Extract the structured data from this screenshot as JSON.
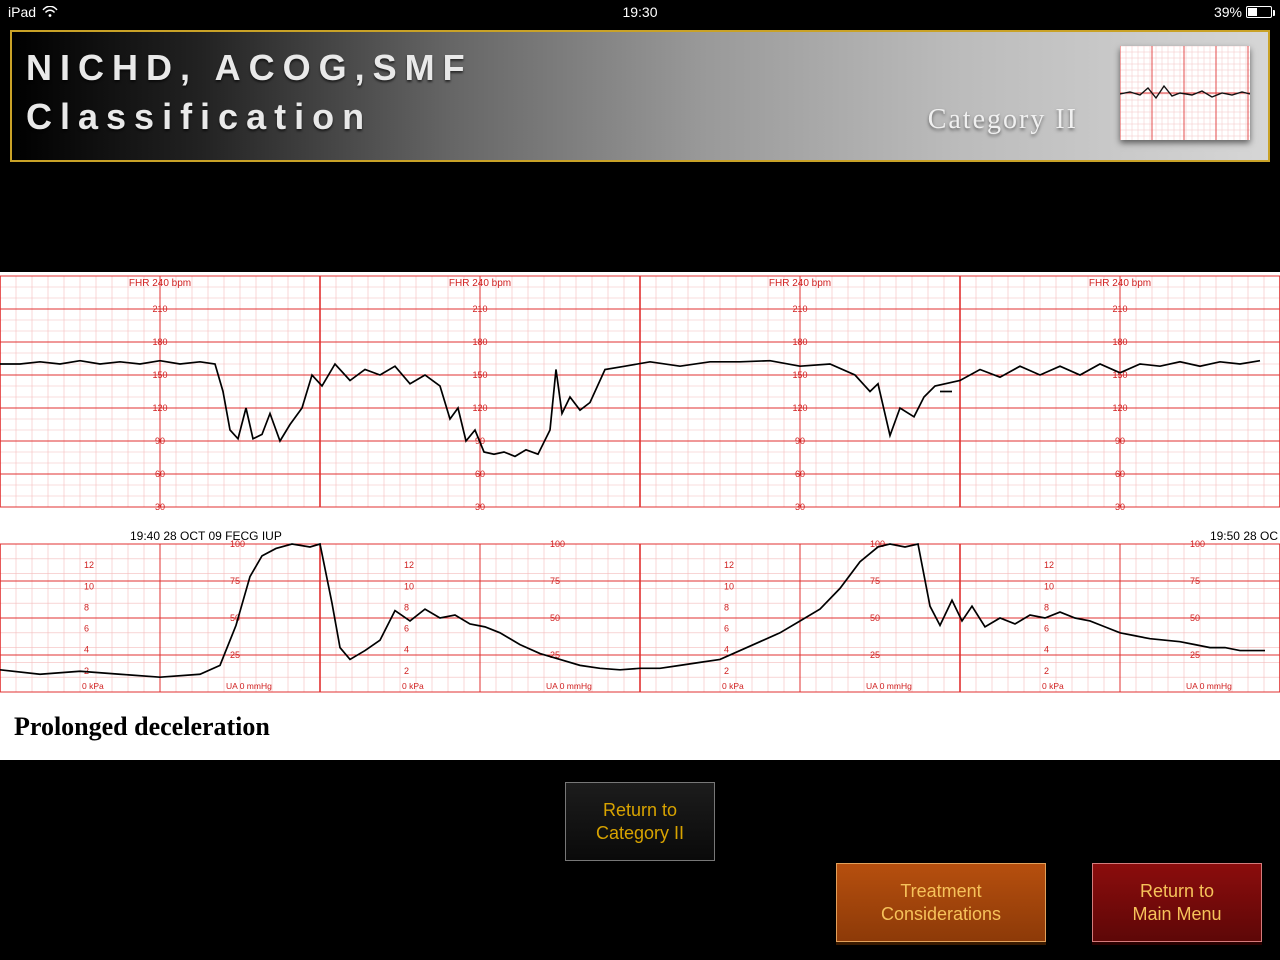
{
  "statusbar": {
    "device": "iPad",
    "time": "19:30",
    "battery_pct_label": "39%",
    "battery_pct": 39
  },
  "banner": {
    "title_line1": "NICHD, ACOG,SMF",
    "title_line2": "Classification",
    "subtitle": "Category II",
    "border_color": "#c9a227",
    "thumb": {
      "grid_color_minor": "#f4c4c4",
      "grid_color_major": "#e03a3a",
      "trace_color": "#111111",
      "bg": "#ffffff"
    }
  },
  "fhr_strip": {
    "type": "line",
    "bg": "#ffffff",
    "grid_minor_color": "#f3bcbc",
    "grid_major_color": "#e13030",
    "text_color": "#d02020",
    "trace_color": "#000000",
    "panel_heading": "FHR 240 bpm",
    "y_labels": [
      30,
      60,
      90,
      120,
      150,
      180,
      210
    ],
    "ylim": [
      30,
      240
    ],
    "caption": "Prolonged deceleration",
    "caption_fontsize": 26,
    "num_panels": 4,
    "fhr_points": [
      [
        0,
        160
      ],
      [
        20,
        160
      ],
      [
        40,
        162
      ],
      [
        60,
        160
      ],
      [
        80,
        163
      ],
      [
        100,
        160
      ],
      [
        120,
        162
      ],
      [
        140,
        160
      ],
      [
        160,
        163
      ],
      [
        180,
        160
      ],
      [
        200,
        162
      ],
      [
        215,
        160
      ],
      [
        223,
        135
      ],
      [
        230,
        100
      ],
      [
        238,
        92
      ],
      [
        246,
        120
      ],
      [
        253,
        92
      ],
      [
        262,
        96
      ],
      [
        270,
        115
      ],
      [
        280,
        90
      ],
      [
        290,
        105
      ],
      [
        302,
        120
      ],
      [
        312,
        150
      ],
      [
        322,
        140
      ],
      [
        335,
        160
      ],
      [
        350,
        145
      ],
      [
        365,
        155
      ],
      [
        380,
        150
      ],
      [
        395,
        158
      ],
      [
        410,
        142
      ],
      [
        425,
        150
      ],
      [
        440,
        140
      ],
      [
        450,
        110
      ],
      [
        458,
        120
      ],
      [
        466,
        90
      ],
      [
        475,
        100
      ],
      [
        484,
        80
      ],
      [
        494,
        78
      ],
      [
        504,
        80
      ],
      [
        515,
        76
      ],
      [
        526,
        82
      ],
      [
        538,
        78
      ],
      [
        550,
        100
      ],
      [
        556,
        155
      ],
      [
        562,
        115
      ],
      [
        570,
        130
      ],
      [
        580,
        118
      ],
      [
        590,
        125
      ],
      [
        605,
        155
      ],
      [
        625,
        158
      ],
      [
        650,
        162
      ],
      [
        680,
        158
      ],
      [
        710,
        162
      ],
      [
        740,
        162
      ],
      [
        770,
        163
      ],
      [
        800,
        158
      ],
      [
        830,
        160
      ],
      [
        855,
        150
      ],
      [
        870,
        135
      ],
      [
        878,
        142
      ],
      [
        890,
        95
      ],
      [
        900,
        120
      ],
      [
        914,
        112
      ],
      [
        924,
        130
      ],
      [
        935,
        140
      ],
      [
        960,
        145
      ],
      [
        980,
        155
      ],
      [
        1000,
        148
      ],
      [
        1020,
        158
      ],
      [
        1040,
        150
      ],
      [
        1060,
        158
      ],
      [
        1080,
        150
      ],
      [
        1100,
        160
      ],
      [
        1120,
        152
      ],
      [
        1140,
        160
      ],
      [
        1160,
        158
      ],
      [
        1180,
        162
      ],
      [
        1200,
        158
      ],
      [
        1220,
        162
      ],
      [
        1240,
        160
      ],
      [
        1260,
        163
      ]
    ],
    "fhr_gaps": [
      [
        878,
        890
      ],
      [
        935,
        960
      ]
    ]
  },
  "toco_strip": {
    "type": "line",
    "bg": "#ffffff",
    "grid_minor_color": "#f3bcbc",
    "grid_major_color": "#e13030",
    "text_color": "#d02020",
    "trace_color": "#000000",
    "timestamp_left": "19:40 28 OCT 09 FECG IUP",
    "timestamp_right": "19:50 28 OC",
    "left_scale_labels": [
      2,
      4,
      6,
      8,
      10,
      12
    ],
    "right_scale_labels": [
      25,
      50,
      75,
      100
    ],
    "ylim_mmHg": [
      0,
      100
    ],
    "footer_left": "0 kPa",
    "footer_right": "UA  0 mmHg",
    "toco_points": [
      [
        0,
        15
      ],
      [
        40,
        12
      ],
      [
        80,
        14
      ],
      [
        120,
        12
      ],
      [
        160,
        10
      ],
      [
        200,
        12
      ],
      [
        220,
        18
      ],
      [
        236,
        45
      ],
      [
        250,
        78
      ],
      [
        262,
        92
      ],
      [
        276,
        97
      ],
      [
        292,
        100
      ],
      [
        310,
        98
      ],
      [
        320,
        100
      ],
      [
        332,
        60
      ],
      [
        340,
        30
      ],
      [
        350,
        22
      ],
      [
        365,
        28
      ],
      [
        380,
        35
      ],
      [
        395,
        55
      ],
      [
        410,
        48
      ],
      [
        425,
        56
      ],
      [
        440,
        50
      ],
      [
        455,
        52
      ],
      [
        470,
        46
      ],
      [
        485,
        44
      ],
      [
        500,
        40
      ],
      [
        520,
        32
      ],
      [
        540,
        26
      ],
      [
        560,
        22
      ],
      [
        580,
        18
      ],
      [
        600,
        16
      ],
      [
        620,
        15
      ],
      [
        640,
        16
      ],
      [
        660,
        16
      ],
      [
        680,
        18
      ],
      [
        700,
        20
      ],
      [
        720,
        22
      ],
      [
        740,
        28
      ],
      [
        760,
        34
      ],
      [
        780,
        40
      ],
      [
        800,
        48
      ],
      [
        820,
        56
      ],
      [
        840,
        70
      ],
      [
        860,
        88
      ],
      [
        878,
        98
      ],
      [
        890,
        100
      ],
      [
        905,
        98
      ],
      [
        918,
        100
      ],
      [
        930,
        58
      ],
      [
        940,
        45
      ],
      [
        952,
        62
      ],
      [
        962,
        48
      ],
      [
        972,
        58
      ],
      [
        985,
        44
      ],
      [
        1000,
        50
      ],
      [
        1015,
        46
      ],
      [
        1030,
        52
      ],
      [
        1045,
        50
      ],
      [
        1060,
        54
      ],
      [
        1075,
        50
      ],
      [
        1090,
        48
      ],
      [
        1105,
        44
      ],
      [
        1120,
        40
      ],
      [
        1135,
        38
      ],
      [
        1150,
        36
      ],
      [
        1165,
        35
      ],
      [
        1180,
        34
      ],
      [
        1195,
        32
      ],
      [
        1210,
        30
      ],
      [
        1225,
        30
      ],
      [
        1240,
        28
      ],
      [
        1255,
        28
      ],
      [
        1265,
        28
      ]
    ]
  },
  "buttons": {
    "return_category": "Return to\nCategory II",
    "treatment": "Treatment\nConsiderations",
    "main_menu": "Return to\nMain Menu",
    "colors": {
      "black_bg_from": "#1c1c1c",
      "black_bg_to": "#0a0a0a",
      "black_fg": "#d8a300",
      "orange_bg_from": "#b64f0e",
      "orange_bg_to": "#8d3a08",
      "orange_fg": "#f6c25a",
      "red_bg_from": "#8b0d0d",
      "red_bg_to": "#5e0707",
      "red_fg": "#f6c25a"
    }
  }
}
